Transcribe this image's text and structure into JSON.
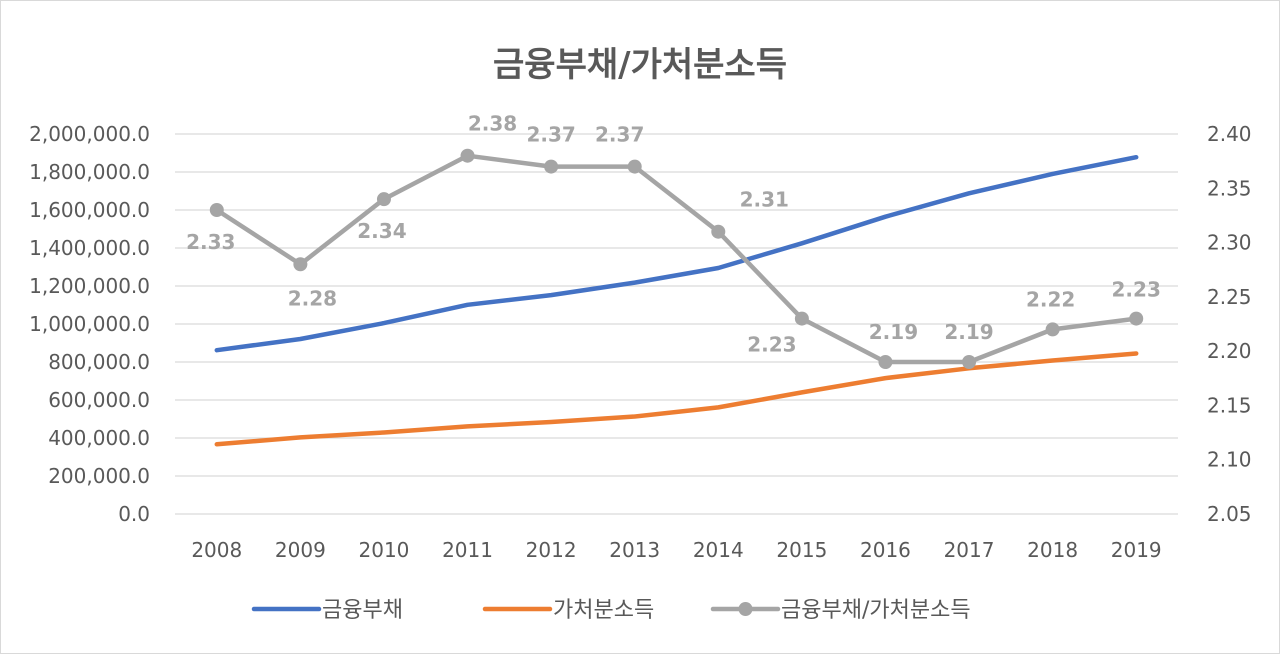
{
  "chart_data": {
    "type": "line",
    "title": "금융부채/가처분소득",
    "categories": [
      "2008",
      "2009",
      "2010",
      "2011",
      "2012",
      "2013",
      "2014",
      "2015",
      "2016",
      "2017",
      "2018",
      "2019"
    ],
    "series": [
      {
        "name": "금융부채",
        "axis": "left",
        "color": "#4472c4",
        "values": [
          862000,
          921000,
          1005000,
          1101000,
          1152000,
          1218000,
          1295000,
          1425000,
          1565000,
          1688000,
          1790000,
          1878000
        ]
      },
      {
        "name": "가처분소득",
        "axis": "left",
        "color": "#ed7d31",
        "values": [
          367000,
          403000,
          429000,
          461000,
          484000,
          513000,
          561000,
          640000,
          715000,
          767000,
          808000,
          845000
        ]
      },
      {
        "name": "금융부채/가처분소득",
        "axis": "right",
        "color": "#a5a5a5",
        "values": [
          2.33,
          2.28,
          2.34,
          2.38,
          2.37,
          2.37,
          2.31,
          2.23,
          2.19,
          2.19,
          2.22,
          2.23
        ],
        "labels": [
          "2.33",
          "2.28",
          "2.34",
          "2.38",
          "2.37",
          "2.37",
          "2.31",
          "2.23",
          "2.19",
          "2.19",
          "2.22",
          "2.23"
        ]
      }
    ],
    "y_left": {
      "range": [
        0,
        2000000
      ],
      "ticks": [
        "0.0",
        "200,000.0",
        "400,000.0",
        "600,000.0",
        "800,000.0",
        "1,000,000.0",
        "1,200,000.0",
        "1,400,000.0",
        "1,600,000.0",
        "1,800,000.0",
        "2,000,000.0"
      ]
    },
    "y_right": {
      "range": [
        2.05,
        2.4
      ],
      "ticks": [
        "2.05",
        "2.10",
        "2.15",
        "2.20",
        "2.25",
        "2.30",
        "2.35",
        "2.40"
      ]
    },
    "grid": true,
    "legend": "bottom"
  }
}
